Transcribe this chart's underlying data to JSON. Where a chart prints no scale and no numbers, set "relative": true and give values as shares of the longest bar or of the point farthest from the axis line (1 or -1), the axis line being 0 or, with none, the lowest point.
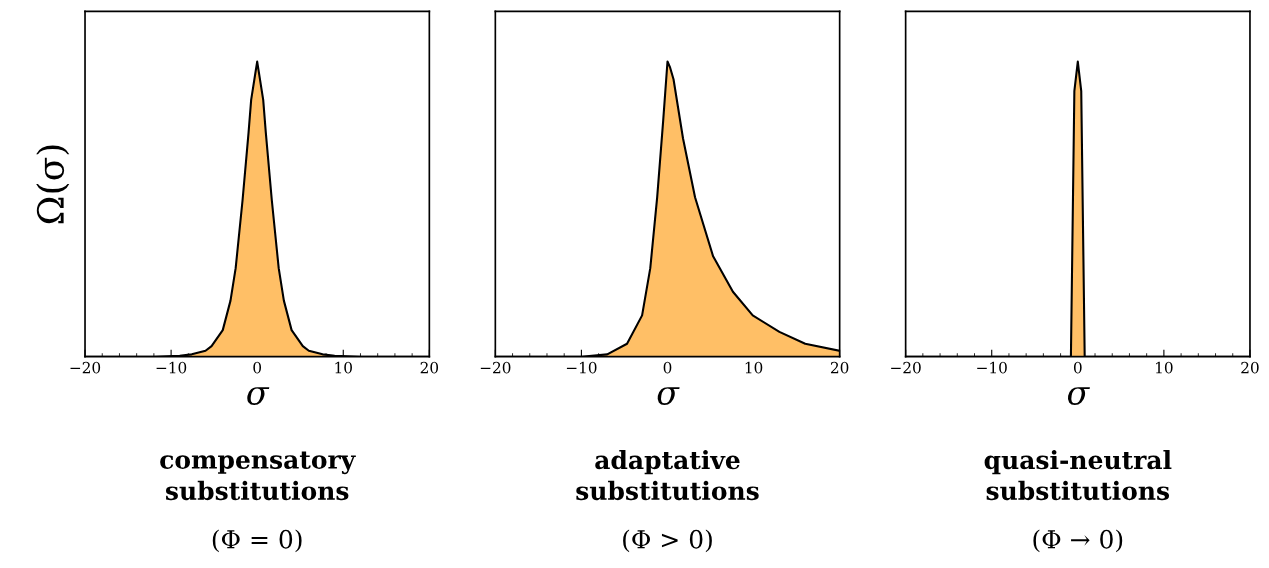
{
  "chart_data": [
    {
      "type": "area",
      "relative": true,
      "ylabel": "Ω(σ)",
      "xlabel": "σ",
      "xlim": [
        -20,
        20
      ],
      "tick_labels": "x",
      "grid": false,
      "legend": false,
      "xticks": [
        {
          "value": -20,
          "label": "−20"
        },
        {
          "value": -18,
          "label": null
        },
        {
          "value": -16,
          "label": null
        },
        {
          "value": -14,
          "label": null
        },
        {
          "value": -12,
          "label": null
        },
        {
          "value": -10,
          "label": "−10"
        },
        {
          "value": -8,
          "label": null
        },
        {
          "value": -6,
          "label": null
        },
        {
          "value": -4,
          "label": null
        },
        {
          "value": -2,
          "label": null
        },
        0,
        {
          "value": 2,
          "label": null
        },
        {
          "value": 4,
          "label": null
        },
        {
          "value": 6,
          "label": null
        },
        {
          "value": 8,
          "label": null
        },
        10,
        {
          "value": 12,
          "label": null
        },
        {
          "value": 14,
          "label": null
        },
        {
          "value": 16,
          "label": null
        },
        {
          "value": 18,
          "label": null
        },
        20
      ],
      "annotations": [
        "compensatory\nsubstitutions",
        "(Φ = 0)"
      ],
      "series": [
        {
          "color": "#ffbf66",
          "x": [
            -20,
            -12,
            -9,
            -7.6,
            -6,
            -5.3,
            -4,
            -3.1,
            -2.5,
            -1.7,
            -1,
            -0.7,
            0,
            0.7,
            1,
            1.7,
            2.5,
            3.1,
            4,
            5.3,
            6,
            7.6,
            9,
            12,
            20
          ],
          "values": [
            0,
            0,
            0.003,
            0.008,
            0.02,
            0.036,
            0.09,
            0.19,
            0.3,
            0.53,
            0.76,
            0.87,
            1,
            0.87,
            0.76,
            0.53,
            0.3,
            0.19,
            0.09,
            0.036,
            0.02,
            0.008,
            0.003,
            0,
            0
          ]
        }
      ]
    },
    {
      "type": "area",
      "relative": true,
      "xlabel": "σ",
      "xlim": [
        -20,
        20
      ],
      "tick_labels": "x",
      "grid": false,
      "legend": false,
      "xticks": [
        {
          "value": -20,
          "label": "−20"
        },
        {
          "value": -18,
          "label": null
        },
        {
          "value": -16,
          "label": null
        },
        {
          "value": -14,
          "label": null
        },
        {
          "value": -12,
          "label": null
        },
        {
          "value": -10,
          "label": "−10"
        },
        {
          "value": -8,
          "label": null
        },
        {
          "value": -6,
          "label": null
        },
        {
          "value": -4,
          "label": null
        },
        {
          "value": -2,
          "label": null
        },
        0,
        {
          "value": 2,
          "label": null
        },
        {
          "value": 4,
          "label": null
        },
        {
          "value": 6,
          "label": null
        },
        {
          "value": 8,
          "label": null
        },
        10,
        {
          "value": 12,
          "label": null
        },
        {
          "value": 14,
          "label": null
        },
        {
          "value": 16,
          "label": null
        },
        {
          "value": 18,
          "label": null
        },
        20
      ],
      "annotations": [
        "adaptative\nsubstitutions",
        "(Φ > 0)"
      ],
      "series": [
        {
          "color": "#ffbf66",
          "x": [
            -20,
            -10,
            -7,
            -4.7,
            -2.95,
            -2,
            -1.2,
            -0.5,
            0,
            0.3,
            0.7,
            1.8,
            3.2,
            5.3,
            7.6,
            9.9,
            13,
            16,
            20
          ],
          "values": [
            0,
            0,
            0.008,
            0.044,
            0.14,
            0.3,
            0.54,
            0.8,
            1,
            0.98,
            0.94,
            0.74,
            0.54,
            0.34,
            0.22,
            0.14,
            0.084,
            0.044,
            0.02
          ]
        }
      ]
    },
    {
      "type": "area",
      "relative": true,
      "xlabel": "σ",
      "xlim": [
        -20,
        20
      ],
      "tick_labels": "x",
      "grid": false,
      "legend": false,
      "xticks": [
        {
          "value": -20,
          "label": "−20"
        },
        {
          "value": -18,
          "label": null
        },
        {
          "value": -16,
          "label": null
        },
        {
          "value": -14,
          "label": null
        },
        {
          "value": -12,
          "label": null
        },
        {
          "value": -10,
          "label": "−10"
        },
        {
          "value": -8,
          "label": null
        },
        {
          "value": -6,
          "label": null
        },
        {
          "value": -4,
          "label": null
        },
        {
          "value": -2,
          "label": null
        },
        0,
        {
          "value": 2,
          "label": null
        },
        {
          "value": 4,
          "label": null
        },
        {
          "value": 6,
          "label": null
        },
        {
          "value": 8,
          "label": null
        },
        10,
        {
          "value": 12,
          "label": null
        },
        {
          "value": 14,
          "label": null
        },
        {
          "value": 16,
          "label": null
        },
        {
          "value": 18,
          "label": null
        },
        20
      ],
      "annotations": [
        "quasi-neutral\nsubstitutions",
        "(Φ → 0)"
      ],
      "series": [
        {
          "color": "#ffbf66",
          "x": [
            -20,
            -0.8,
            -0.4,
            0,
            0.4,
            0.8,
            20
          ],
          "values": [
            0,
            0,
            0.9,
            1,
            0.9,
            0,
            0
          ]
        }
      ]
    }
  ]
}
